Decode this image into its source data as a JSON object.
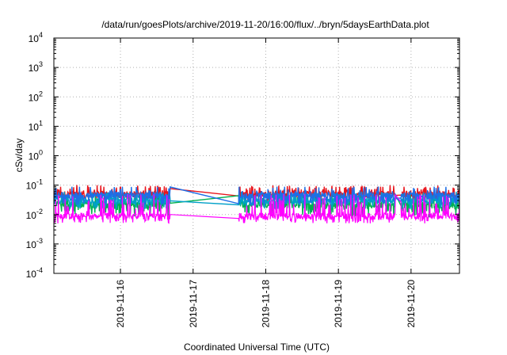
{
  "chart_data": {
    "type": "line",
    "title": "/data/run/goesPlots/archive/2019-11-20/16:00/flux/../bryn/5daysEarthData.plot",
    "xlabel": "Coordinated Universal Time (UTC)",
    "ylabel": "cSv/day",
    "yscale": "log",
    "ylim": [
      0.0001,
      10000
    ],
    "y_ticks": [
      {
        "base": "10",
        "exp": "-4"
      },
      {
        "base": "10",
        "exp": "-3"
      },
      {
        "base": "10",
        "exp": "-2"
      },
      {
        "base": "10",
        "exp": "-1"
      },
      {
        "base": "10",
        "exp": "0"
      },
      {
        "base": "10",
        "exp": "1"
      },
      {
        "base": "10",
        "exp": "2"
      },
      {
        "base": "10",
        "exp": "3"
      },
      {
        "base": "10",
        "exp": "4"
      }
    ],
    "xlim": [
      "2019-11-15T02:00",
      "2019-11-20T16:00"
    ],
    "x_ticks": [
      "2019-11-16",
      "2019-11-17",
      "2019-11-18",
      "2019-11-19",
      "2019-11-20"
    ],
    "grid": true,
    "data_gaps": [
      [
        "2019-11-16T16:30",
        "2019-11-17T15:00"
      ],
      [
        "2019-11-19T19:00",
        "2019-11-19T20:30"
      ]
    ],
    "series": [
      {
        "color": "#e8141c",
        "baseline": 0.05,
        "spike_max": 0.1,
        "dip_min": 0.03
      },
      {
        "color": "#00b050",
        "baseline": 0.022,
        "spike_max": 0.05,
        "dip_min": 0.008
      },
      {
        "color": "#00a0c8",
        "baseline": 0.03,
        "spike_max": 0.06,
        "dip_min": 0.015
      },
      {
        "color": "#1e6ee6",
        "baseline": 0.045,
        "spike_max": 0.09,
        "dip_min": 0.02
      },
      {
        "color": "#ff00ff",
        "baseline": 0.009,
        "spike_max": 0.05,
        "dip_min": 0.005
      }
    ]
  }
}
